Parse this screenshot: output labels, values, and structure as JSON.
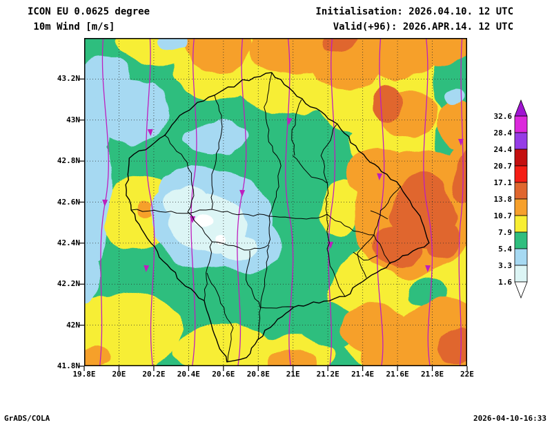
{
  "header": {
    "model_line": "ICON EU 0.0625 degree",
    "param_line": " 10m Wind [m/s]",
    "init_line": "Initialisation: 2026.04.10. 12 UTC",
    "valid_line": "Valid(+96): 2026.APR.14. 12 UTC"
  },
  "footer": {
    "left": "GrADS/COLA",
    "right": "2026-04-10-16:33"
  },
  "axes": {
    "x_ticks": [
      "19.8E",
      "20E",
      "20.2E",
      "20.4E",
      "20.6E",
      "20.8E",
      "21E",
      "21.2E",
      "21.4E",
      "21.6E",
      "21.8E",
      "22E"
    ],
    "y_ticks": [
      "41.8N",
      "42N",
      "42.2N",
      "42.4N",
      "42.6N",
      "42.8N",
      "43N",
      "43.2N"
    ]
  },
  "legend": {
    "unit": "m/s",
    "levels": [
      "32.6",
      "28.4",
      "24.4",
      "20.7",
      "17.1",
      "13.8",
      "10.7",
      "7.9",
      "5.4",
      "3.3",
      "1.6"
    ],
    "box_colors_top_to_bottom": [
      "#DC28DC",
      "#963CE6",
      "#C40F0F",
      "#F51D14",
      "#E0662E",
      "#F6A02B",
      "#F8EE32",
      "#2FBE7E",
      "#A6D9F2",
      "#DCF5F5"
    ],
    "arrow_top_color": "#A014D2",
    "arrow_bottom_color": "#FFFFFF"
  },
  "map": {
    "field_colors": {
      "green": "#2FBE7E",
      "yellow": "#F7EE35",
      "orange": "#F6A02B",
      "dorange": "#E0662E",
      "lblue": "#A6D9F2",
      "pcyan": "#DCF5F5",
      "white": "#FFFFFF"
    },
    "streamline_color": "#BE1EBE",
    "boundary_color": "#000000",
    "grid_color": "#2A2A2A",
    "frame_color": "#000000"
  }
}
